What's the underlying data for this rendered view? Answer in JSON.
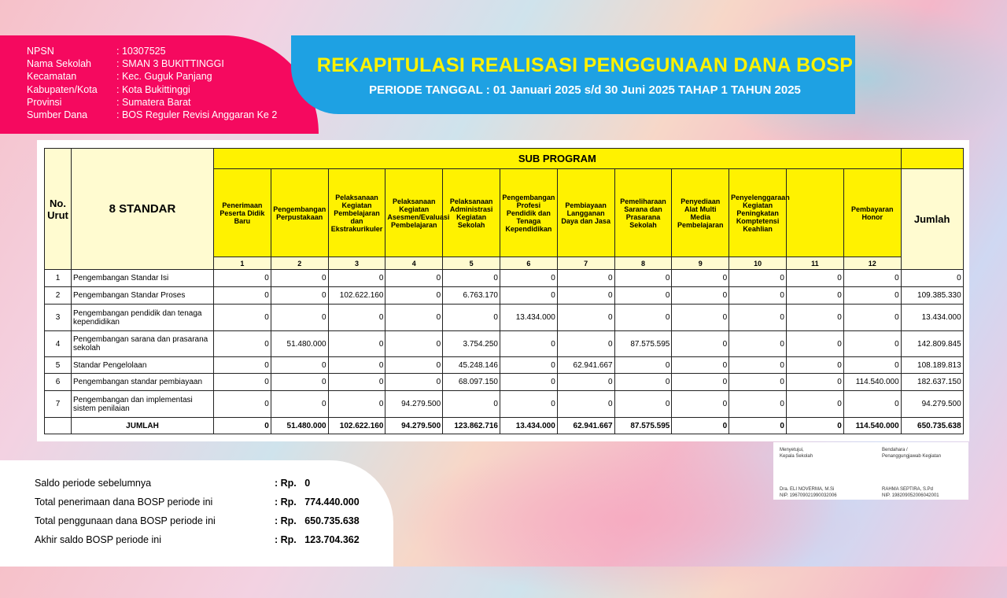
{
  "school": {
    "rows": [
      {
        "label": "NPSN",
        "value": ": 10307525"
      },
      {
        "label": "Nama Sekolah",
        "value": ": SMAN 3 BUKITTINGGI"
      },
      {
        "label": "Kecamatan",
        "value": ": Kec. Guguk Panjang"
      },
      {
        "label": "Kabupaten/Kota",
        "value": ": Kota Bukittinggi"
      },
      {
        "label": "Provinsi",
        "value": ": Sumatera Barat"
      },
      {
        "label": "Sumber Dana",
        "value": ": BOS Reguler Revisi Anggaran Ke 2"
      }
    ]
  },
  "banner": {
    "title": "REKAPITULASI REALISASI PENGGUNAAN DANA BOSP",
    "subtitle": "PERIODE TANGGAL : 01 Januari 2025 s/d 30 Juni 2025 TAHAP 1 TAHUN 2025"
  },
  "table": {
    "no_header": "No. Urut",
    "standard_header": "8 STANDAR",
    "sub_program": "SUB PROGRAM",
    "jumlah_header": "Jumlah",
    "columns": [
      "Penerimaan Peserta Didik Baru",
      "Pengembangan Perpustakaan",
      "Pelaksanaan Kegiatan Pembelajaran dan Ekstrakurikuler",
      "Pelaksanaan Kegiatan Asesmen/Evaluasi Pembelajaran",
      "Pelaksanaan Administrasi Kegiatan Sekolah",
      "Pengembangan Profesi Pendidik dan Tenaga Kependidikan",
      "Pembiayaan Langganan Daya dan Jasa",
      "Pemeliharaan Sarana dan Prasarana Sekolah",
      "Penyediaan Alat Multi Media Pembelajaran",
      "Penyelenggaraan Kegiatan Peningkatan Komptetensi Keahlian",
      "",
      "Pembayaran Honor"
    ],
    "column_numbers": [
      "1",
      "2",
      "3",
      "4",
      "5",
      "6",
      "7",
      "8",
      "9",
      "10",
      "11",
      "12"
    ],
    "rows": [
      {
        "no": "1",
        "name": "Pengembangan Standar Isi",
        "values": [
          "0",
          "0",
          "0",
          "0",
          "0",
          "0",
          "0",
          "0",
          "0",
          "0",
          "0",
          "0"
        ],
        "total": "0"
      },
      {
        "no": "2",
        "name": "Pengembangan Standar Proses",
        "values": [
          "0",
          "0",
          "102.622.160",
          "0",
          "6.763.170",
          "0",
          "0",
          "0",
          "0",
          "0",
          "0",
          "0"
        ],
        "total": "109.385.330"
      },
      {
        "no": "3",
        "name": "Pengembangan pendidik dan tenaga kependidikan",
        "values": [
          "0",
          "0",
          "0",
          "0",
          "0",
          "13.434.000",
          "0",
          "0",
          "0",
          "0",
          "0",
          "0"
        ],
        "total": "13.434.000"
      },
      {
        "no": "4",
        "name": "Pengembangan sarana dan prasarana sekolah",
        "values": [
          "0",
          "51.480.000",
          "0",
          "0",
          "3.754.250",
          "0",
          "0",
          "87.575.595",
          "0",
          "0",
          "0",
          "0"
        ],
        "total": "142.809.845"
      },
      {
        "no": "5",
        "name": "Standar Pengelolaan",
        "values": [
          "0",
          "0",
          "0",
          "0",
          "45.248.146",
          "0",
          "62.941.667",
          "0",
          "0",
          "0",
          "0",
          "0"
        ],
        "total": "108.189.813"
      },
      {
        "no": "6",
        "name": "Pengembangan standar pembiayaan",
        "values": [
          "0",
          "0",
          "0",
          "0",
          "68.097.150",
          "0",
          "0",
          "0",
          "0",
          "0",
          "0",
          "114.540.000"
        ],
        "total": "182.637.150"
      },
      {
        "no": "7",
        "name": "Pengembangan dan implementasi sistem penilaian",
        "values": [
          "0",
          "0",
          "0",
          "94.279.500",
          "0",
          "0",
          "0",
          "0",
          "0",
          "0",
          "0",
          "0"
        ],
        "total": "94.279.500"
      }
    ],
    "total_row": {
      "label": "JUMLAH",
      "values": [
        "0",
        "51.480.000",
        "102.622.160",
        "94.279.500",
        "123.862.716",
        "13.434.000",
        "62.941.667",
        "87.575.595",
        "0",
        "0",
        "0",
        "114.540.000"
      ],
      "total": "650.735.638"
    }
  },
  "summary": [
    {
      "label": "Saldo periode sebelumnya",
      "value": ": Rp.   0"
    },
    {
      "label": "Total penerimaan dana BOSP periode ini",
      "value": ": Rp.   774.440.000"
    },
    {
      "label": "Total penggunaan dana BOSP periode ini",
      "value": ": Rp.   650.735.638"
    },
    {
      "label": "Akhir saldo BOSP periode ini",
      "value": ": Rp.   123.704.362"
    }
  ],
  "signatures": [
    {
      "line1": "Menyetujui,",
      "line2": "Kepala Sekolah",
      "name": "Dra. ELI NOVERMA, M.Si",
      "nip": "NIP. 196709021990032006"
    },
    {
      "line1": "Bendahara /",
      "line2": "Penanggungjawab Kegiatan",
      "name": "RAHMA SEPTIRA, S.Pd",
      "nip": "NIP. 198209052006042001"
    }
  ]
}
